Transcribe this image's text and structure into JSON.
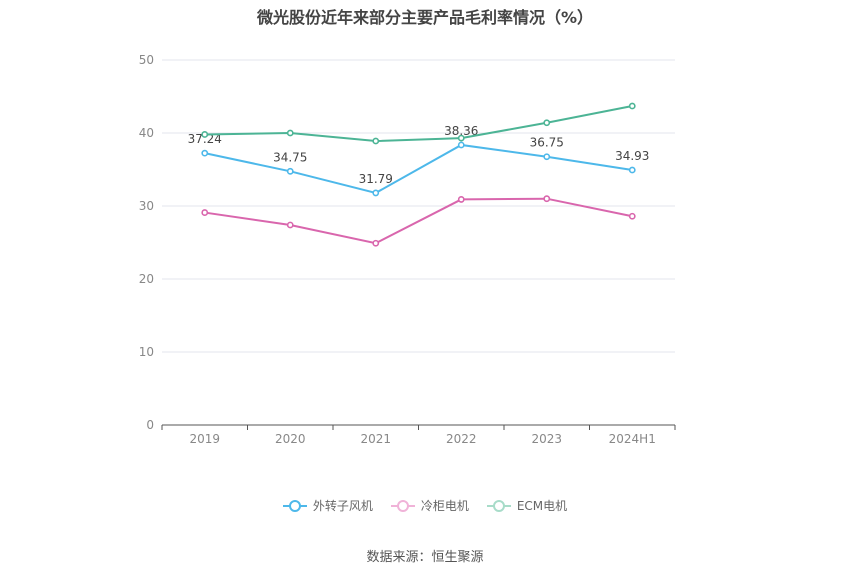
{
  "chart_data": {
    "type": "line",
    "title": "微光股份近年来部分主要产品毛利率情况（%）",
    "categories": [
      "2019",
      "2020",
      "2021",
      "2022",
      "2023",
      "2024H1"
    ],
    "ylim": [
      0,
      50
    ],
    "yticks": [
      0,
      10,
      20,
      30,
      40,
      50
    ],
    "grid": true,
    "legend_position": "bottom",
    "series": [
      {
        "name": "外转子风机",
        "color": "#4db8ea",
        "values": [
          37.24,
          34.75,
          31.79,
          38.36,
          36.75,
          34.93
        ],
        "labels": [
          "37.24",
          "34.75",
          "31.79",
          "38.36",
          "36.75",
          "34.93"
        ]
      },
      {
        "name": "冷柜电机",
        "color": "#d966ad",
        "values": [
          29.1,
          27.4,
          24.9,
          30.9,
          31.0,
          28.6
        ]
      },
      {
        "name": "ECM电机",
        "color": "#4cb495",
        "values": [
          39.8,
          40.0,
          38.9,
          39.3,
          41.4,
          43.7
        ]
      }
    ]
  },
  "footer": {
    "source": "数据来源：恒生聚源"
  }
}
